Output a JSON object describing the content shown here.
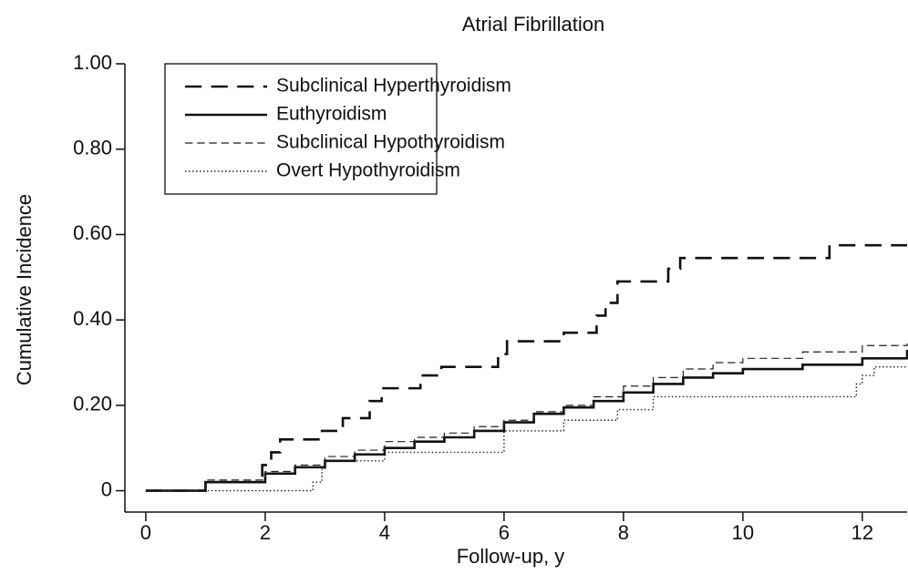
{
  "chart_data": {
    "type": "line",
    "drawstyle": "steps-post",
    "title": "Atrial Fibrillation",
    "x_label": "Follow-up, y",
    "y_label": "Cumulative Incidence",
    "xlim": [
      -0.35,
      12.75
    ],
    "xticks": [
      0,
      2,
      4,
      6,
      8,
      10,
      12
    ],
    "ylim": [
      -0.05,
      1.0
    ],
    "yticks": [
      0,
      {
        "value": 0.2,
        "label": "0.20"
      },
      {
        "value": 0.4,
        "label": "0.40"
      },
      {
        "value": 0.6,
        "label": "0.60"
      },
      {
        "value": 0.8,
        "label": "0.80"
      },
      {
        "value": 1.0,
        "label": "1.00"
      }
    ],
    "legend": "upper left",
    "series": [
      {
        "name": "Subclinical Hyperthyroidism",
        "color": "#111111",
        "linestyle": "dashed",
        "linewidth": 2.6,
        "x": [
          0,
          1.0,
          1.95,
          2.1,
          2.25,
          2.95,
          3.3,
          3.75,
          3.95,
          4.6,
          4.95,
          5.9,
          6.05,
          7.0,
          7.55,
          7.7,
          7.9,
          8.75,
          8.95,
          11.45,
          12.75
        ],
        "values": [
          0,
          0.02,
          0.06,
          0.09,
          0.12,
          0.14,
          0.17,
          0.21,
          0.24,
          0.27,
          0.29,
          0.32,
          0.35,
          0.37,
          0.41,
          0.44,
          0.49,
          0.52,
          0.545,
          0.575,
          0.575
        ]
      },
      {
        "name": "Euthyroidism",
        "color": "#111111",
        "linestyle": "solid",
        "linewidth": 2.6,
        "x": [
          0,
          1,
          2,
          2.5,
          3,
          3.5,
          4,
          4.5,
          5,
          5.5,
          6,
          6.5,
          7,
          7.5,
          8,
          8.5,
          9,
          9.5,
          10,
          11,
          12,
          12.75
        ],
        "values": [
          0,
          0.02,
          0.04,
          0.055,
          0.07,
          0.085,
          0.1,
          0.115,
          0.125,
          0.14,
          0.16,
          0.18,
          0.195,
          0.21,
          0.23,
          0.25,
          0.265,
          0.275,
          0.285,
          0.295,
          0.31,
          0.33
        ]
      },
      {
        "name": "Subclinical Hypothyroidism",
        "color": "#222222",
        "linestyle": "dashed",
        "linewidth": 1.2,
        "x": [
          0,
          1,
          2,
          2.5,
          3,
          3.5,
          4,
          4.5,
          5,
          5.5,
          6,
          6.5,
          7,
          7.5,
          8,
          8.5,
          9,
          9.5,
          10,
          11,
          12,
          12.75
        ],
        "values": [
          0,
          0.025,
          0.045,
          0.06,
          0.08,
          0.095,
          0.115,
          0.125,
          0.135,
          0.15,
          0.165,
          0.185,
          0.2,
          0.22,
          0.245,
          0.265,
          0.285,
          0.3,
          0.31,
          0.325,
          0.34,
          0.345
        ]
      },
      {
        "name": "Overt Hypothyroidism",
        "color": "#222222",
        "linestyle": "dotted",
        "linewidth": 1.4,
        "x": [
          0,
          2.8,
          2.95,
          3.0,
          4.0,
          6.0,
          7.0,
          7.9,
          8.5,
          11.9,
          12.0,
          12.2,
          12.75
        ],
        "values": [
          0,
          0.02,
          0.05,
          0.07,
          0.09,
          0.14,
          0.165,
          0.19,
          0.22,
          0.25,
          0.27,
          0.29,
          0.29
        ]
      }
    ]
  }
}
